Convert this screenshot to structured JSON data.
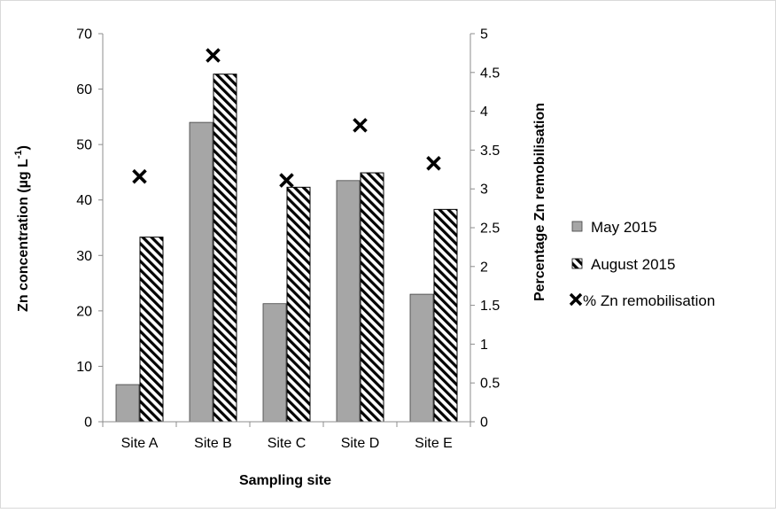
{
  "chart_data": {
    "type": "bar",
    "categories": [
      "Site A",
      "Site B",
      "Site C",
      "Site D",
      "Site E"
    ],
    "series": [
      {
        "name": "May 2015",
        "kind": "bar",
        "axis": "left",
        "style": "solid-gray",
        "color": "#a6a6a6",
        "values": [
          6.7,
          54.0,
          21.3,
          43.5,
          23.0
        ]
      },
      {
        "name": "August 2015",
        "kind": "bar",
        "axis": "left",
        "style": "diagonal-hatch",
        "color": "#000000",
        "values": [
          33.3,
          62.7,
          42.3,
          44.9,
          38.3
        ]
      },
      {
        "name": "% Zn remobilisation",
        "kind": "marker",
        "marker": "x",
        "axis": "right",
        "color": "#000000",
        "values": [
          3.16,
          4.72,
          3.11,
          3.82,
          3.33
        ]
      }
    ],
    "xlabel": "Sampling site",
    "ylabel": "Zn concentration (µg L⁻¹)",
    "ylabel_main": "Zn concentration (µg L",
    "ylabel_sup": "-1",
    "ylabel_close": ")",
    "y2label": "Percentage Zn remobilisation",
    "ylim": [
      0,
      70
    ],
    "yticks": [
      "0",
      "10",
      "20",
      "30",
      "40",
      "50",
      "60",
      "70"
    ],
    "y2lim": [
      0,
      5
    ],
    "y2ticks": [
      "0",
      "0.5",
      "1",
      "1.5",
      "2",
      "2.5",
      "3",
      "3.5",
      "4",
      "4.5",
      "5"
    ],
    "grid": false,
    "legend_position": "right"
  }
}
